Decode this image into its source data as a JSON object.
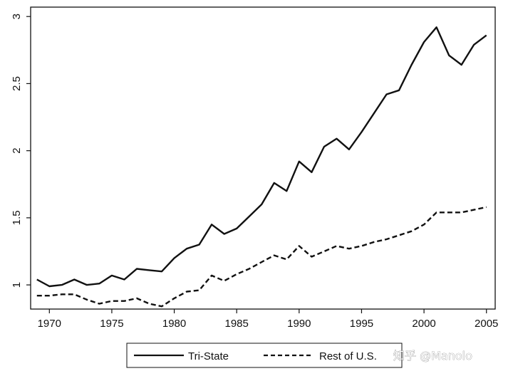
{
  "chart_data": {
    "type": "line",
    "title": "",
    "xlabel": "",
    "ylabel": "",
    "xlim": [
      1968.5,
      2005.7
    ],
    "ylim": [
      0.82,
      3.07
    ],
    "x_ticks": [
      1970,
      1975,
      1980,
      1985,
      1990,
      1995,
      2000,
      2005
    ],
    "x_tick_labels": [
      "1970",
      "1975",
      "1980",
      "1985",
      "1990",
      "1995",
      "2000",
      "2005"
    ],
    "y_ticks": [
      1,
      1.5,
      2,
      2.5,
      3
    ],
    "y_tick_labels": [
      "1",
      "1.5",
      "2",
      "2.5",
      "3"
    ],
    "grid": false,
    "legend": {
      "placement": "bottom-outside"
    },
    "x": [
      1969,
      1970,
      1971,
      1972,
      1973,
      1974,
      1975,
      1976,
      1977,
      1978,
      1979,
      1980,
      1981,
      1982,
      1983,
      1984,
      1985,
      1986,
      1987,
      1988,
      1989,
      1990,
      1991,
      1992,
      1993,
      1994,
      1995,
      1996,
      1997,
      1998,
      1999,
      2000,
      2001,
      2002,
      2003,
      2004,
      2005
    ],
    "series": [
      {
        "name": "Tri-State",
        "style": "solid",
        "color": "#111111",
        "values": [
          1.04,
          0.99,
          1.0,
          1.04,
          1.0,
          1.01,
          1.07,
          1.04,
          1.12,
          1.11,
          1.1,
          1.2,
          1.27,
          1.3,
          1.45,
          1.38,
          1.42,
          1.51,
          1.6,
          1.76,
          1.7,
          1.92,
          1.84,
          2.03,
          2.09,
          2.01,
          2.14,
          2.28,
          2.42,
          2.45,
          2.64,
          2.81,
          2.92,
          2.71,
          2.64,
          2.79,
          2.86
        ]
      },
      {
        "name": "Rest of U.S.",
        "style": "dashed",
        "color": "#111111",
        "values": [
          0.92,
          0.92,
          0.93,
          0.93,
          0.89,
          0.86,
          0.88,
          0.88,
          0.9,
          0.86,
          0.84,
          0.9,
          0.95,
          0.96,
          1.07,
          1.03,
          1.08,
          1.12,
          1.17,
          1.22,
          1.19,
          1.29,
          1.21,
          1.25,
          1.29,
          1.27,
          1.29,
          1.32,
          1.34,
          1.37,
          1.4,
          1.45,
          1.54,
          1.54,
          1.54,
          1.56,
          1.58
        ]
      }
    ]
  },
  "watermark": {
    "text": "知乎 @Manolo"
  }
}
